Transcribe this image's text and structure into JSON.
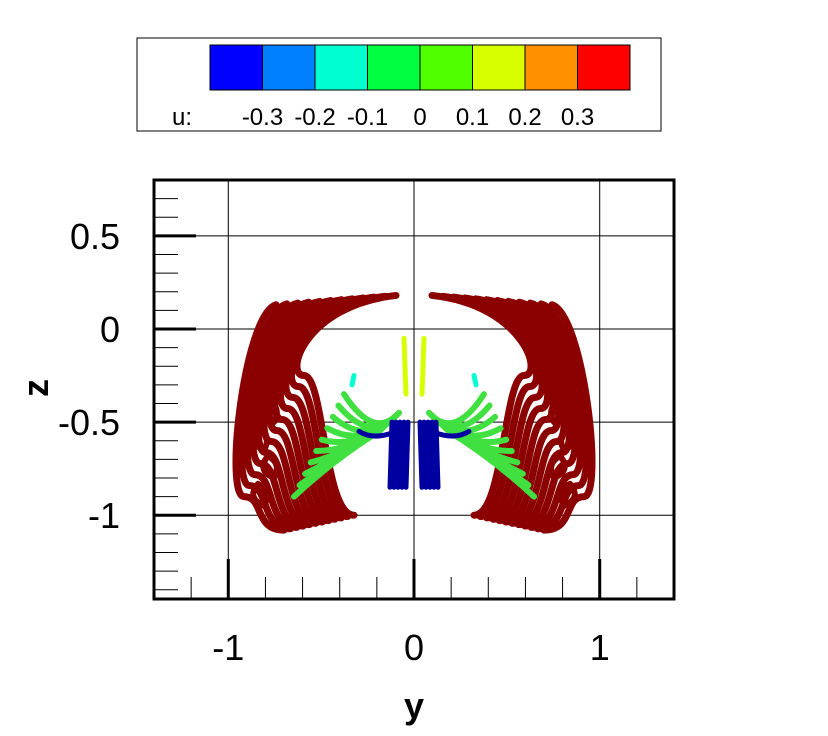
{
  "chart_data": {
    "type": "streamtube",
    "xlabel": "y",
    "ylabel": "z",
    "xlim": [
      -1.4,
      1.4
    ],
    "ylim": [
      -1.45,
      0.8
    ],
    "x_ticks": [
      -1,
      0,
      1
    ],
    "x_tick_labels": [
      "-1",
      "0",
      "1"
    ],
    "y_ticks": [
      0.5,
      0,
      -0.5,
      -1
    ],
    "y_tick_labels": [
      "0.5",
      "0",
      "-0.5",
      "-1"
    ],
    "grid": true,
    "colorbar": {
      "variable": "u:",
      "levels": [
        -0.3,
        -0.2,
        -0.1,
        0,
        0.1,
        0.2,
        0.3
      ],
      "level_labels": [
        "-0.3",
        "-0.2",
        "-0.1",
        "0",
        "0.1",
        "0.2",
        "0.3"
      ],
      "colors": [
        "#0000ff",
        "#0080ff",
        "#00ffd0",
        "#00ff40",
        "#50ff00",
        "#d8ff00",
        "#ff9000",
        "#ff0000"
      ]
    },
    "tube_colors": {
      "outer": "#8b0000",
      "mid": "#40e040",
      "core": "#0000a0"
    }
  }
}
